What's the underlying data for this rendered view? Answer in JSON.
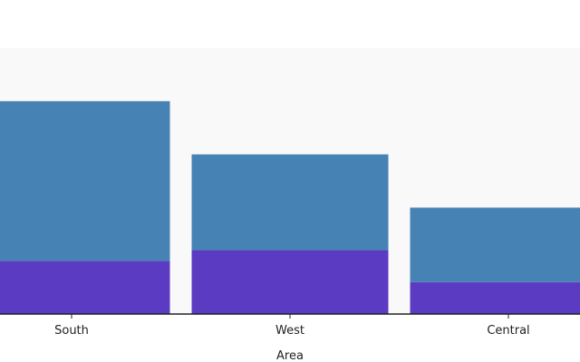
{
  "chart_data": {
    "type": "bar",
    "stacked": true,
    "categories": [
      "South",
      "West",
      "Central"
    ],
    "series": [
      {
        "values": [
          10,
          12,
          6
        ],
        "color": "#5b3bc2"
      },
      {
        "values": [
          30,
          18,
          14
        ],
        "color": "#4682b4"
      }
    ],
    "xlabel": "Area",
    "ylabel": "",
    "ylim": [
      0,
      50
    ],
    "grid": false,
    "plot_background": "#f9f9f9",
    "axis_color": "#222222"
  }
}
